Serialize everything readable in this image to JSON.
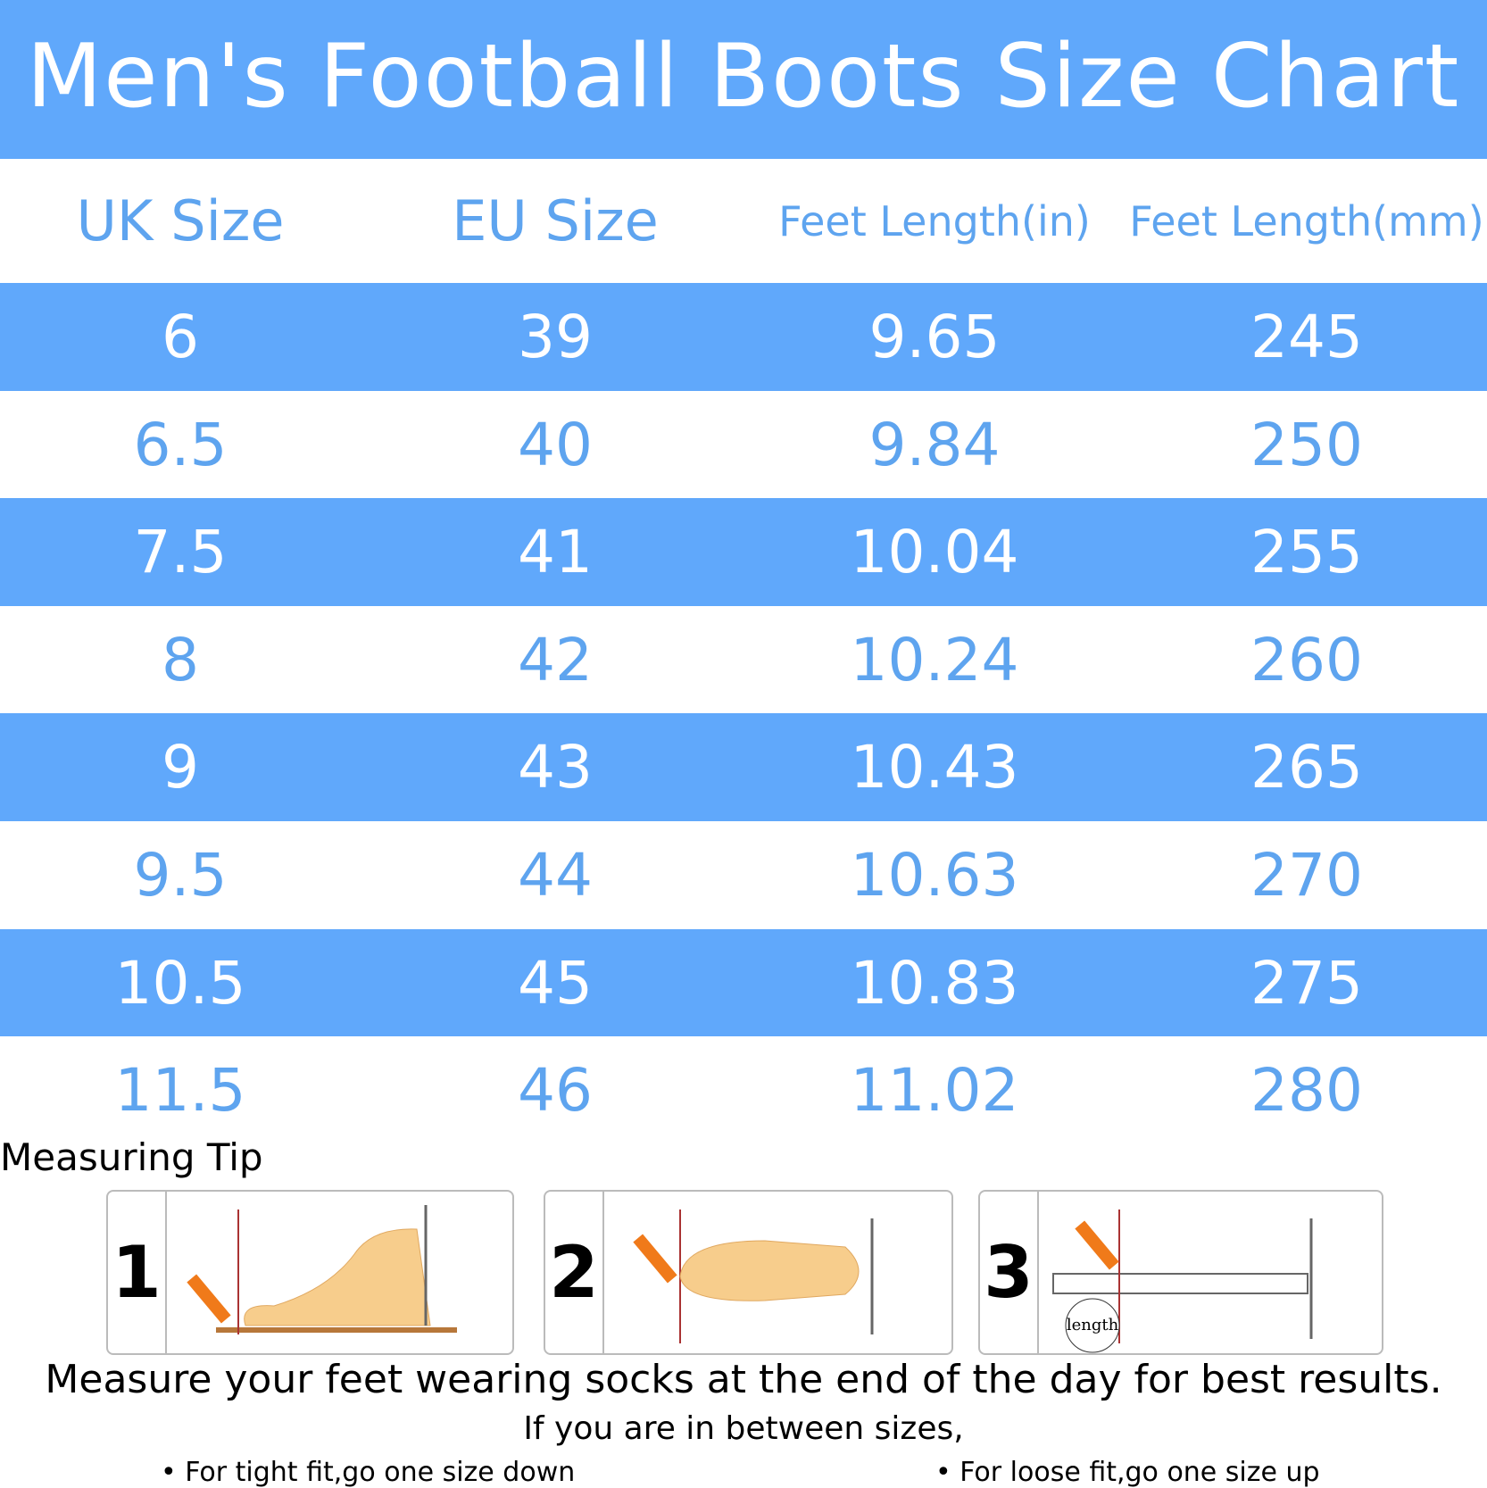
{
  "header": {
    "title": "Men's Football Boots Size Chart"
  },
  "table": {
    "columns": [
      "UK Size",
      "EU Size",
      "Feet Length(in)",
      "Feet Length(mm)"
    ],
    "rows": [
      [
        "6",
        "39",
        "9.65",
        "245"
      ],
      [
        "6.5",
        "40",
        "9.84",
        "250"
      ],
      [
        "7.5",
        "41",
        "10.04",
        "255"
      ],
      [
        "8",
        "42",
        "10.24",
        "260"
      ],
      [
        "9",
        "43",
        "10.43",
        "265"
      ],
      [
        "9.5",
        "44",
        "10.63",
        "270"
      ],
      [
        "10.5",
        "45",
        "10.83",
        "275"
      ],
      [
        "11.5",
        "46",
        "11.02",
        "280"
      ]
    ]
  },
  "tips": {
    "title": "Measuring Tip",
    "steps": [
      "1",
      "2",
      "3"
    ],
    "ruler_label": "length",
    "note": "Measure your feet wearing socks at the end of the day for best results.",
    "between": "If you are in between sizes,",
    "bullets": [
      "For tight fit,go one size down",
      "For loose fit,go one size up"
    ]
  }
}
